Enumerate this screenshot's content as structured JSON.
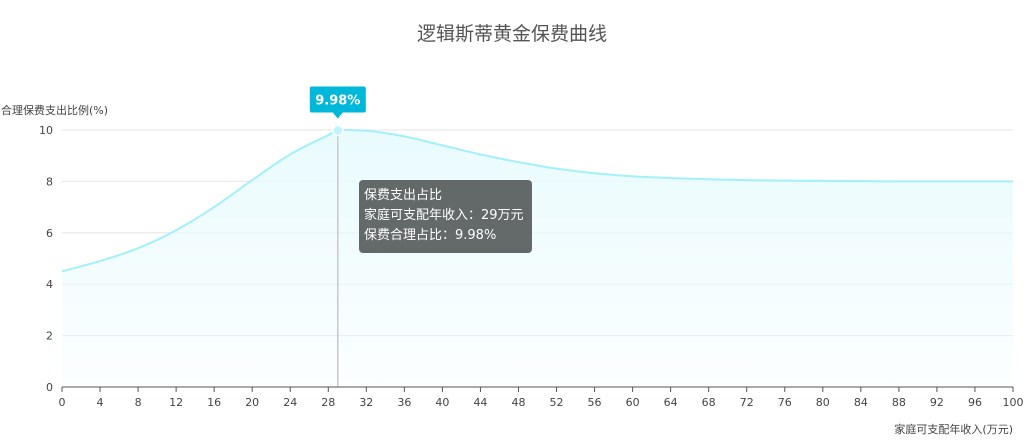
{
  "chart_data": {
    "type": "line",
    "title": "逻辑斯蒂黄金保费曲线",
    "xlabel": "家庭可支配年收入(万元)",
    "ylabel": "合理保费支出比例(%)",
    "xlim": [
      0,
      100
    ],
    "ylim": [
      0,
      10
    ],
    "x_ticks": [
      0,
      4,
      8,
      12,
      16,
      20,
      24,
      28,
      32,
      36,
      40,
      44,
      48,
      52,
      56,
      60,
      64,
      68,
      72,
      76,
      80,
      84,
      88,
      92,
      96,
      100
    ],
    "y_ticks": [
      0,
      2,
      4,
      6,
      8,
      10
    ],
    "grid": true,
    "series": [
      {
        "name": "保费支出占比",
        "x": [
          0,
          4,
          8,
          12,
          16,
          20,
          24,
          28,
          29,
          32,
          36,
          40,
          44,
          48,
          52,
          56,
          60,
          64,
          68,
          72,
          76,
          80,
          84,
          88,
          92,
          96,
          100
        ],
        "y": [
          4.5,
          4.9,
          5.4,
          6.1,
          7.0,
          8.05,
          9.05,
          9.8,
          9.98,
          9.97,
          9.75,
          9.4,
          9.05,
          8.75,
          8.5,
          8.32,
          8.2,
          8.13,
          8.08,
          8.05,
          8.03,
          8.02,
          8.01,
          8.0,
          8.0,
          8.0,
          8.0
        ]
      }
    ],
    "highlight": {
      "x": 29,
      "y": 9.98,
      "label": "9.98%"
    },
    "tooltip": {
      "title": "保费支出占比",
      "rows": [
        "家庭可支配年收入：29万元",
        "保费合理占比：9.98%"
      ]
    }
  },
  "colors": {
    "line": "#a3f0fb",
    "area": "#e9fbfe",
    "marker": "#00b8d9",
    "point_fill": "#bff4fc",
    "crosshair": "#c8c8c8"
  }
}
